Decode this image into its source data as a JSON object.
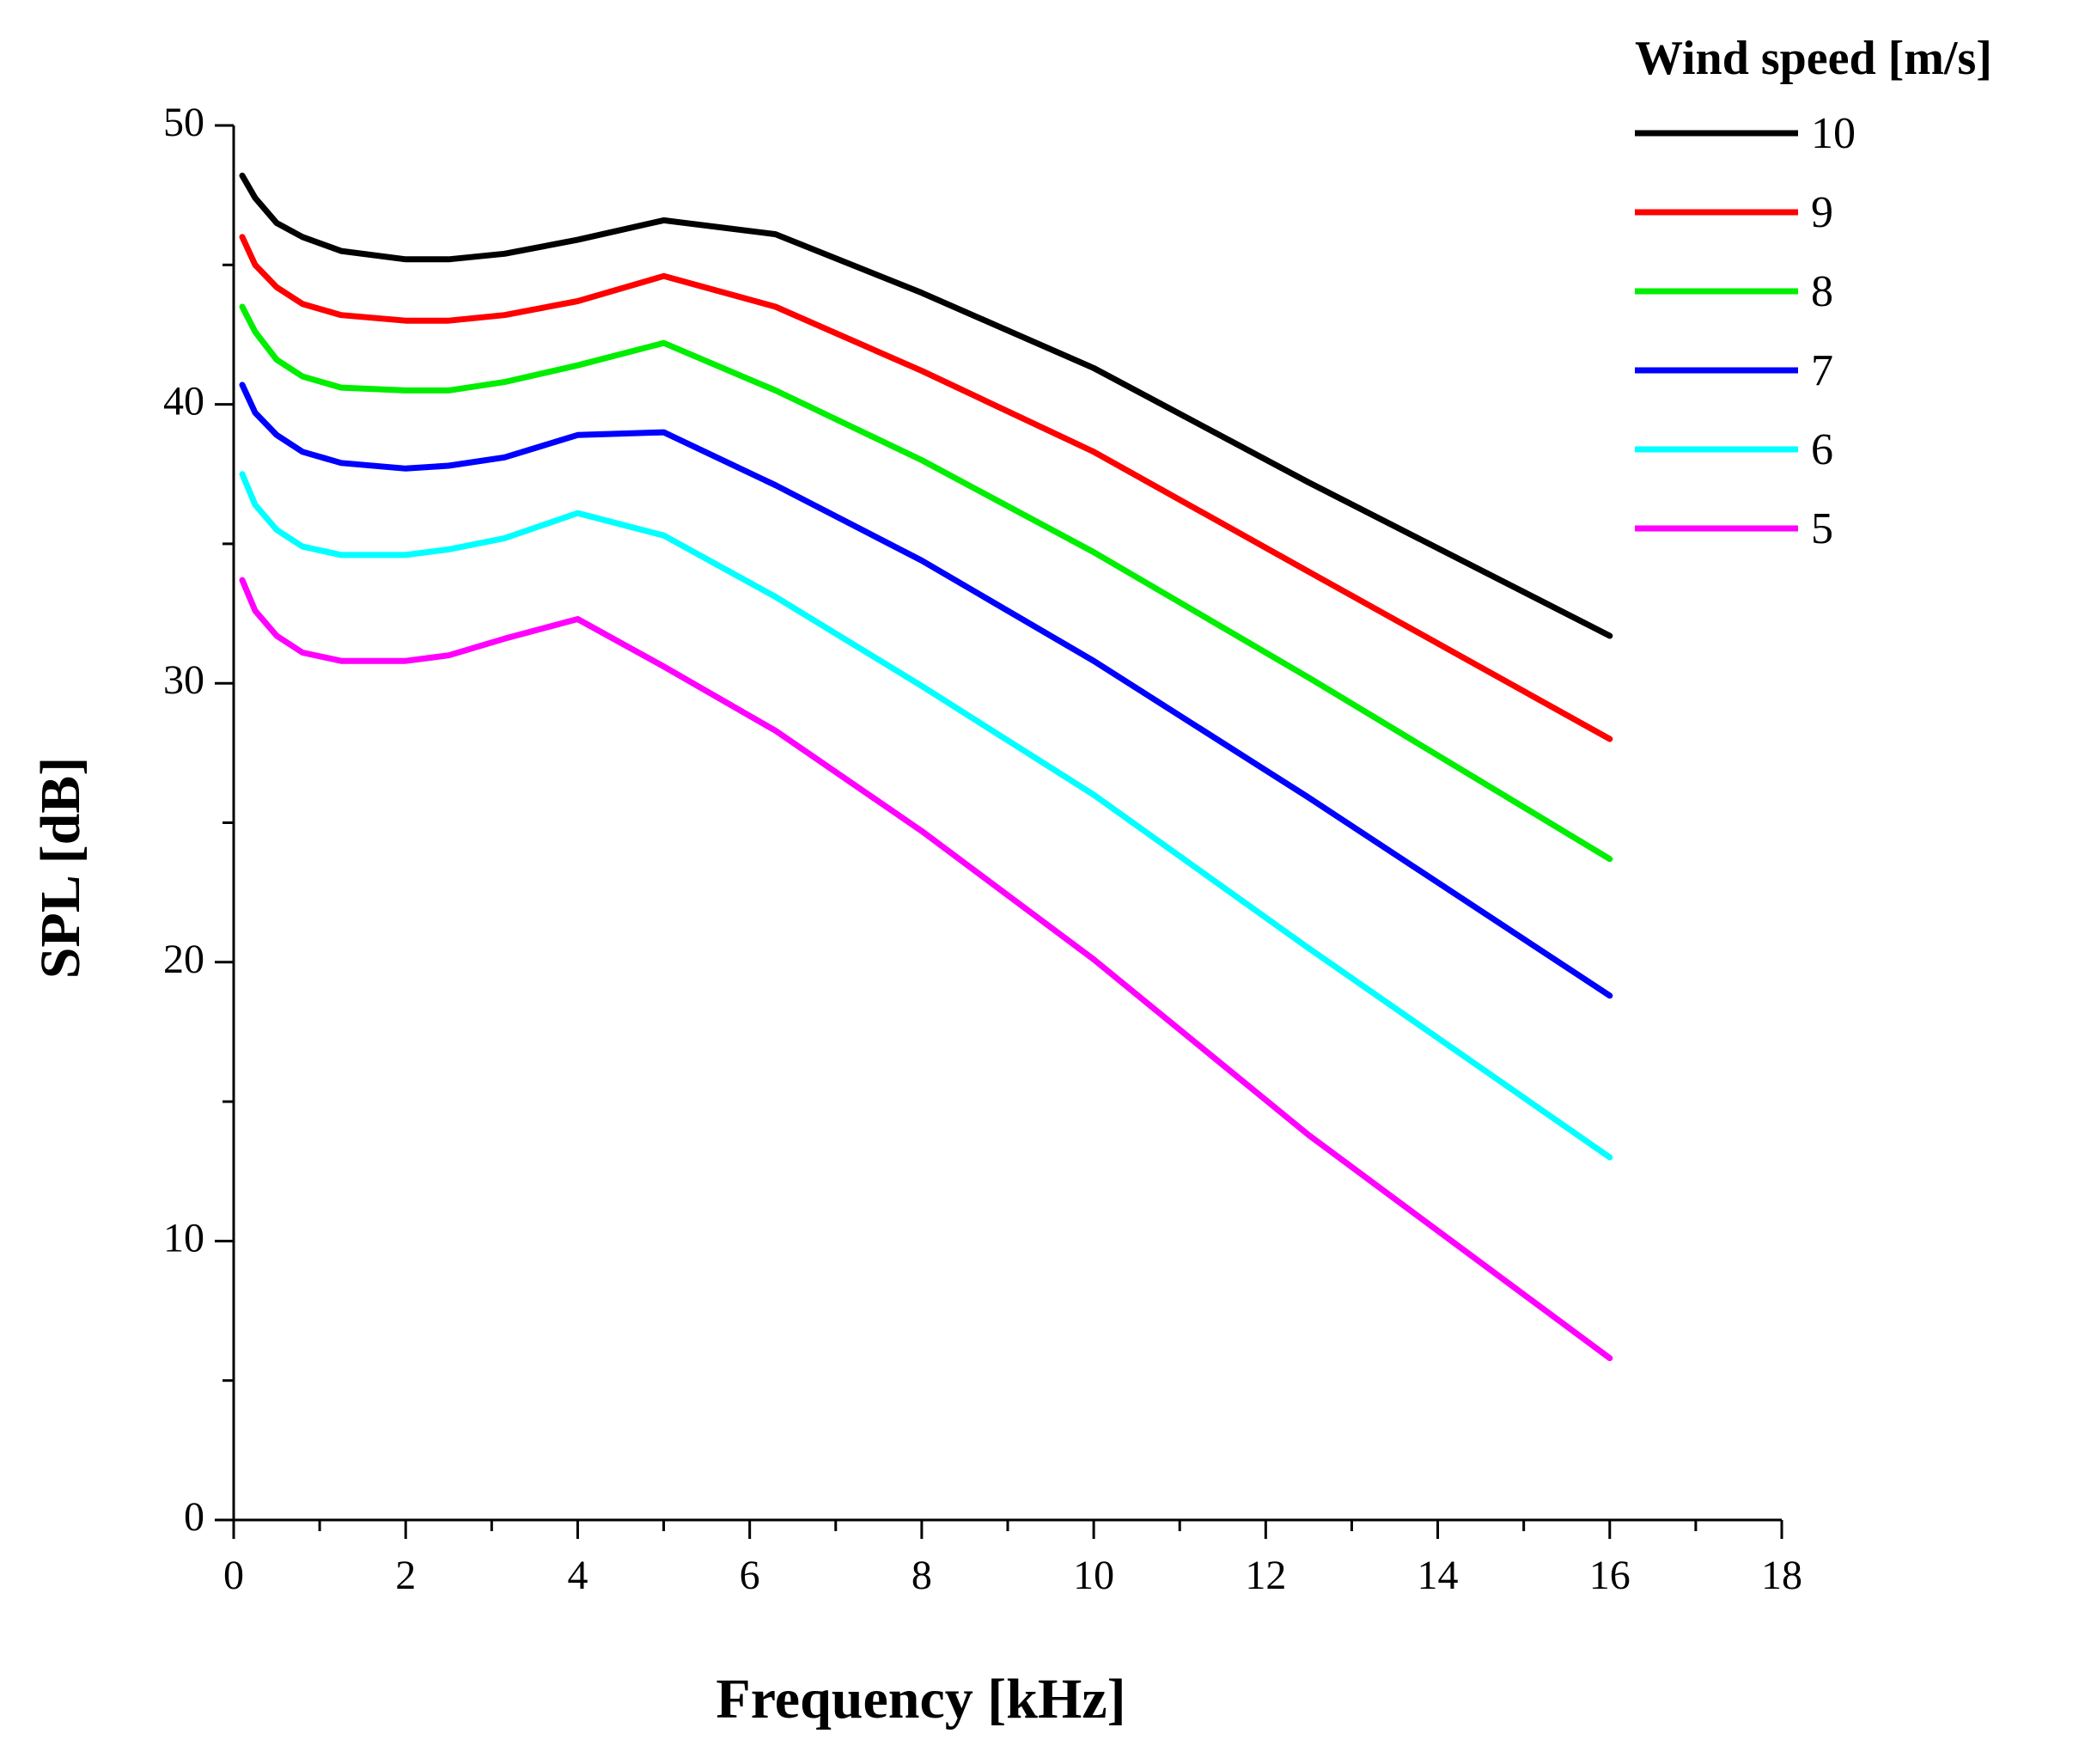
{
  "chart_data": {
    "type": "line",
    "title": "",
    "xlabel": "Frequency [kHz]",
    "ylabel": "SPL [dB]",
    "xlim": [
      0,
      18
    ],
    "ylim": [
      0,
      50
    ],
    "x_major_ticks": [
      0,
      2,
      4,
      6,
      8,
      10,
      12,
      14,
      16,
      18
    ],
    "y_major_ticks": [
      0,
      10,
      20,
      30,
      40,
      50
    ],
    "x_tick_labels": [
      "0",
      "2",
      "4",
      "6",
      "8",
      "10",
      "12",
      "14",
      "16",
      "18"
    ],
    "y_tick_labels": [
      "0",
      "10",
      "20",
      "30",
      "40",
      "50"
    ],
    "grid": false,
    "legend": {
      "title": "Wind speed [m/s]",
      "position": "top-right"
    },
    "series": [
      {
        "name": "10",
        "color": "#000000",
        "x": [
          0.1,
          0.25,
          0.5,
          0.8,
          1.25,
          2,
          2.5,
          3.15,
          4,
          5,
          6.3,
          8,
          10,
          12.5,
          16
        ],
        "y": [
          48.2,
          47.4,
          46.5,
          46.0,
          45.5,
          45.2,
          45.2,
          45.4,
          45.9,
          46.6,
          46.1,
          44.0,
          41.3,
          37.2,
          31.7
        ]
      },
      {
        "name": "9",
        "color": "#ff0000",
        "x": [
          0.1,
          0.25,
          0.5,
          0.8,
          1.25,
          2,
          2.5,
          3.15,
          4,
          5,
          6.3,
          8,
          10,
          12.5,
          16
        ],
        "y": [
          46.0,
          45.0,
          44.2,
          43.6,
          43.2,
          43.0,
          43.0,
          43.2,
          43.7,
          44.6,
          43.5,
          41.2,
          38.3,
          34.0,
          28.0
        ]
      },
      {
        "name": "8",
        "color": "#00ee00",
        "x": [
          0.1,
          0.25,
          0.5,
          0.8,
          1.25,
          2,
          2.5,
          3.15,
          4,
          5,
          6.3,
          8,
          10,
          12.5,
          16
        ],
        "y": [
          43.5,
          42.6,
          41.6,
          41.0,
          40.6,
          40.5,
          40.5,
          40.8,
          41.4,
          42.2,
          40.5,
          38.0,
          34.7,
          30.2,
          23.7
        ]
      },
      {
        "name": "7",
        "color": "#0000ff",
        "x": [
          0.1,
          0.25,
          0.5,
          0.8,
          1.25,
          2,
          2.5,
          3.15,
          4,
          5,
          6.3,
          8,
          10,
          12.5,
          16
        ],
        "y": [
          40.7,
          39.7,
          38.9,
          38.3,
          37.9,
          37.7,
          37.8,
          38.1,
          38.9,
          39.0,
          37.1,
          34.4,
          30.8,
          25.9,
          18.8
        ]
      },
      {
        "name": "6",
        "color": "#00ffff",
        "x": [
          0.1,
          0.25,
          0.5,
          0.8,
          1.25,
          2,
          2.5,
          3.15,
          4,
          5,
          6.3,
          8,
          10,
          12.5,
          16
        ],
        "y": [
          37.5,
          36.4,
          35.5,
          34.9,
          34.6,
          34.6,
          34.8,
          35.2,
          36.1,
          35.3,
          33.1,
          29.9,
          26.0,
          20.5,
          13.0
        ]
      },
      {
        "name": "5",
        "color": "#ff00ff",
        "x": [
          0.1,
          0.25,
          0.5,
          0.8,
          1.25,
          2,
          2.5,
          3.15,
          4,
          5,
          6.3,
          8,
          10,
          12.5,
          16
        ],
        "y": [
          33.7,
          32.6,
          31.7,
          31.1,
          30.8,
          30.8,
          31.0,
          31.6,
          32.3,
          30.6,
          28.3,
          24.7,
          20.1,
          13.8,
          5.8
        ]
      }
    ]
  }
}
